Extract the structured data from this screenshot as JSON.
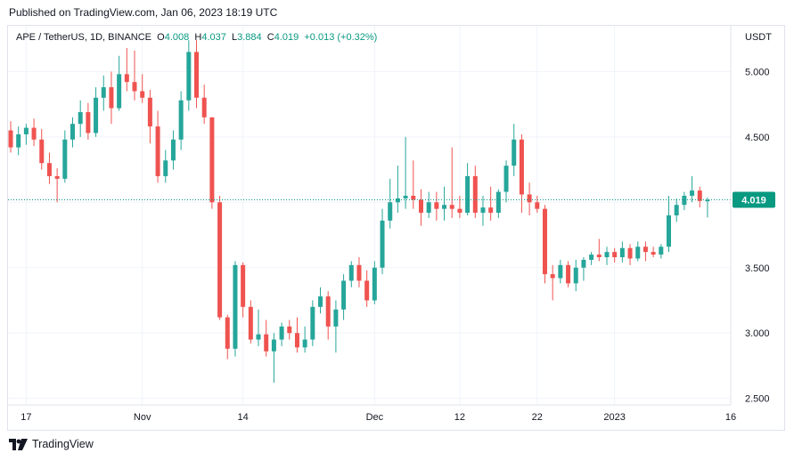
{
  "header": {
    "published": "Published on TradingView.com, Jan 06, 2023 18:19 UTC"
  },
  "legend": {
    "symbol": "APE / TetherUS, 1D, BINANCE",
    "open_label": "O",
    "open": "4.008",
    "high_label": "H",
    "high": "4.037",
    "low_label": "L",
    "low": "3.884",
    "close_label": "C",
    "close": "4.019",
    "change": "+0.013 (+0.32%)"
  },
  "price_axis": {
    "currency": "USDT",
    "last_price": "4.019"
  },
  "brand": {
    "name": "TradingView"
  },
  "colors": {
    "up": "#26a69a",
    "down": "#ef5350",
    "last_price": "#089981",
    "grid": "#f0f3fa"
  },
  "chart_data": {
    "type": "candlestick",
    "ylim": [
      2.45,
      5.35
    ],
    "yticks": [
      2.5,
      3.0,
      3.5,
      4.0,
      4.5,
      5.0
    ],
    "ytick_labels": [
      "2.500",
      "3.000",
      "3.500",
      "4.000",
      "4.500",
      "5.000"
    ],
    "xtick_labels": [
      {
        "label": "17",
        "date": "2022-10-17"
      },
      {
        "label": "Nov",
        "date": "2022-11-01"
      },
      {
        "label": "14",
        "date": "2022-11-14"
      },
      {
        "label": "Dec",
        "date": "2022-12-01"
      },
      {
        "label": "12",
        "date": "2022-12-12"
      },
      {
        "label": "22",
        "date": "2022-12-22"
      },
      {
        "label": "2023",
        "date": "2023-01-01"
      },
      {
        "label": "16",
        "date": "2023-01-16"
      }
    ],
    "xlim": [
      "2022-10-15",
      "2023-01-16"
    ],
    "last_price": 4.019,
    "start_date": "2022-10-15",
    "candles": [
      [
        4.55,
        4.62,
        4.38,
        4.42
      ],
      [
        4.42,
        4.58,
        4.36,
        4.52
      ],
      [
        4.52,
        4.6,
        4.44,
        4.57
      ],
      [
        4.57,
        4.64,
        4.43,
        4.48
      ],
      [
        4.48,
        4.56,
        4.25,
        4.3
      ],
      [
        4.3,
        4.38,
        4.14,
        4.2
      ],
      [
        4.2,
        4.26,
        4.0,
        4.18
      ],
      [
        4.18,
        4.55,
        4.15,
        4.48
      ],
      [
        4.48,
        4.65,
        4.42,
        4.6
      ],
      [
        4.6,
        4.78,
        4.5,
        4.69
      ],
      [
        4.69,
        4.76,
        4.48,
        4.53
      ],
      [
        4.53,
        4.88,
        4.5,
        4.8
      ],
      [
        4.8,
        4.97,
        4.7,
        4.88
      ],
      [
        4.88,
        5.0,
        4.6,
        4.72
      ],
      [
        4.72,
        5.12,
        4.7,
        4.98
      ],
      [
        4.98,
        5.18,
        4.85,
        4.92
      ],
      [
        4.92,
        5.16,
        4.78,
        4.85
      ],
      [
        4.85,
        4.98,
        4.76,
        4.8
      ],
      [
        4.8,
        4.86,
        4.45,
        4.58
      ],
      [
        4.58,
        4.7,
        4.15,
        4.2
      ],
      [
        4.2,
        4.4,
        4.15,
        4.32
      ],
      [
        4.32,
        4.55,
        4.25,
        4.48
      ],
      [
        4.48,
        4.85,
        4.4,
        4.78
      ],
      [
        4.78,
        5.24,
        4.7,
        5.15
      ],
      [
        5.15,
        5.24,
        4.72,
        4.8
      ],
      [
        4.8,
        4.9,
        4.6,
        4.65
      ],
      [
        4.65,
        4.65,
        3.95,
        4.0
      ],
      [
        4.0,
        4.05,
        3.1,
        3.12
      ],
      [
        3.12,
        3.14,
        2.8,
        2.88
      ],
      [
        2.88,
        3.55,
        2.82,
        3.52
      ],
      [
        3.52,
        3.54,
        3.12,
        3.2
      ],
      [
        3.2,
        3.25,
        2.92,
        2.95
      ],
      [
        2.95,
        3.18,
        2.9,
        2.99
      ],
      [
        2.99,
        3.1,
        2.82,
        2.86
      ],
      [
        2.86,
        3.0,
        2.62,
        2.95
      ],
      [
        2.95,
        3.08,
        2.9,
        3.05
      ],
      [
        3.05,
        3.1,
        2.95,
        3.0
      ],
      [
        3.0,
        3.12,
        2.85,
        2.89
      ],
      [
        2.89,
        3.05,
        2.85,
        2.95
      ],
      [
        2.95,
        3.25,
        2.9,
        3.2
      ],
      [
        3.2,
        3.35,
        3.15,
        3.28
      ],
      [
        3.28,
        3.32,
        2.95,
        3.05
      ],
      [
        3.05,
        3.25,
        2.85,
        3.18
      ],
      [
        3.18,
        3.45,
        3.1,
        3.4
      ],
      [
        3.4,
        3.55,
        3.35,
        3.52
      ],
      [
        3.52,
        3.58,
        3.35,
        3.4
      ],
      [
        3.4,
        3.48,
        3.2,
        3.25
      ],
      [
        3.25,
        3.55,
        3.22,
        3.5
      ],
      [
        3.5,
        3.95,
        3.45,
        3.86
      ],
      [
        3.86,
        4.18,
        3.8,
        4.0
      ],
      [
        4.0,
        4.28,
        3.92,
        4.03
      ],
      [
        4.03,
        4.5,
        3.95,
        4.05
      ],
      [
        4.05,
        4.32,
        3.95,
        4.02
      ],
      [
        4.02,
        4.1,
        3.82,
        3.92
      ],
      [
        3.92,
        4.08,
        3.88,
        4.0
      ],
      [
        4.0,
        4.08,
        3.86,
        3.95
      ],
      [
        3.95,
        4.12,
        3.86,
        3.98
      ],
      [
        3.98,
        4.42,
        3.88,
        3.95
      ],
      [
        3.95,
        4.05,
        3.88,
        3.92
      ],
      [
        3.92,
        4.3,
        3.9,
        4.2
      ],
      [
        4.2,
        4.28,
        3.88,
        3.92
      ],
      [
        3.92,
        4.05,
        3.82,
        3.96
      ],
      [
        3.96,
        4.12,
        3.86,
        3.92
      ],
      [
        3.92,
        4.1,
        3.88,
        4.08
      ],
      [
        4.08,
        4.32,
        4.0,
        4.28
      ],
      [
        4.28,
        4.6,
        4.2,
        4.48
      ],
      [
        4.48,
        4.52,
        3.92,
        4.06
      ],
      [
        4.06,
        4.15,
        3.9,
        4.0
      ],
      [
        4.0,
        4.05,
        3.92,
        3.95
      ],
      [
        3.95,
        3.98,
        3.38,
        3.45
      ],
      [
        3.45,
        3.52,
        3.25,
        3.42
      ],
      [
        3.42,
        3.56,
        3.38,
        3.52
      ],
      [
        3.52,
        3.55,
        3.35,
        3.38
      ],
      [
        3.38,
        3.56,
        3.32,
        3.5
      ],
      [
        3.5,
        3.58,
        3.4,
        3.56
      ],
      [
        3.56,
        3.62,
        3.52,
        3.6
      ],
      [
        3.6,
        3.72,
        3.55,
        3.58
      ],
      [
        3.58,
        3.66,
        3.52,
        3.62
      ],
      [
        3.62,
        3.65,
        3.54,
        3.58
      ],
      [
        3.58,
        3.7,
        3.54,
        3.65
      ],
      [
        3.65,
        3.68,
        3.52,
        3.57
      ],
      [
        3.57,
        3.7,
        3.55,
        3.66
      ],
      [
        3.66,
        3.7,
        3.55,
        3.62
      ],
      [
        3.62,
        3.66,
        3.58,
        3.6
      ],
      [
        3.6,
        3.68,
        3.57,
        3.66
      ],
      [
        3.66,
        4.05,
        3.62,
        3.9
      ],
      [
        3.9,
        4.03,
        3.85,
        3.98
      ],
      [
        3.98,
        4.08,
        3.94,
        4.05
      ],
      [
        4.05,
        4.2,
        4.0,
        4.09
      ],
      [
        4.09,
        4.12,
        3.96,
        4.01
      ],
      [
        4.008,
        4.037,
        3.884,
        4.019
      ]
    ]
  }
}
